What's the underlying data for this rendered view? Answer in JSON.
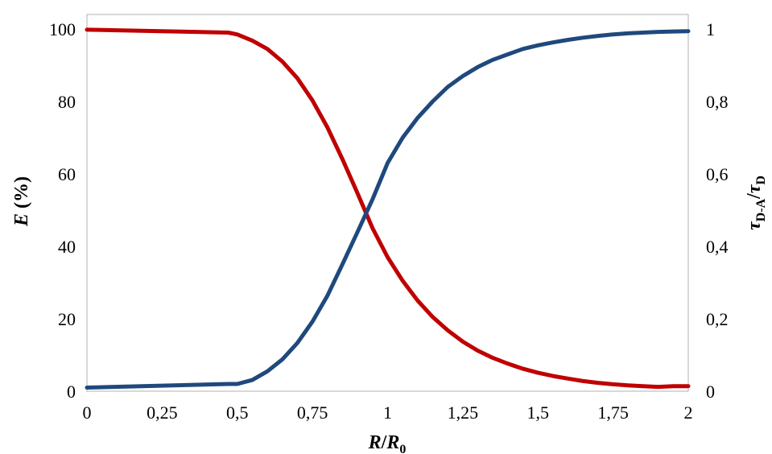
{
  "chart_data": {
    "type": "line",
    "xlabel": {
      "italic": "R",
      "slash": "/",
      "italic2": "R",
      "sub": "0"
    },
    "ylabel_left": {
      "italic": "E",
      "rest": " (%)"
    },
    "ylabel_right": {
      "tau1": "τ",
      "sub1": "D-A",
      "slash": "/",
      "tau2": "τ",
      "sub2": "D"
    },
    "xlim": [
      0,
      2
    ],
    "ylim_left": [
      0,
      100
    ],
    "ylim_right": [
      0,
      1
    ],
    "x_ticks": [
      "0",
      "0,25",
      "0,5",
      "0,75",
      "1",
      "1,25",
      "1,5",
      "1,75",
      "2"
    ],
    "y_left_ticks": [
      "0",
      "20",
      "40",
      "60",
      "80",
      "100"
    ],
    "y_right_ticks": [
      "0",
      "0,2",
      "0,4",
      "0,6",
      "0,8",
      "1"
    ],
    "grid": false,
    "legend": "none",
    "x": [
      0,
      0.47,
      0.5,
      0.55,
      0.6,
      0.65,
      0.7,
      0.75,
      0.8,
      0.85,
      0.9,
      0.95,
      1.0,
      1.05,
      1.1,
      1.15,
      1.2,
      1.25,
      1.3,
      1.35,
      1.4,
      1.45,
      1.5,
      1.55,
      1.6,
      1.65,
      1.7,
      1.75,
      1.8,
      1.85,
      1.9,
      1.95,
      2.0
    ],
    "series": [
      {
        "axis": "left",
        "color": "#c00000",
        "values": [
          99.8,
          99.0,
          98.5,
          96.8,
          94.5,
          91.0,
          86.4,
          80.3,
          72.8,
          64.0,
          54.6,
          45.0,
          37.0,
          30.5,
          25.0,
          20.5,
          16.8,
          13.7,
          11.2,
          9.2,
          7.6,
          6.2,
          5.1,
          4.2,
          3.5,
          2.8,
          2.3,
          1.9,
          1.6,
          1.4,
          1.2,
          1.4,
          1.4
        ]
      },
      {
        "axis": "right",
        "color": "#1f497d",
        "values": [
          0.01,
          0.02,
          0.02,
          0.031,
          0.055,
          0.088,
          0.133,
          0.192,
          0.264,
          0.351,
          0.44,
          0.53,
          0.63,
          0.7,
          0.755,
          0.8,
          0.84,
          0.87,
          0.895,
          0.915,
          0.93,
          0.945,
          0.955,
          0.963,
          0.97,
          0.976,
          0.981,
          0.985,
          0.988,
          0.99,
          0.992,
          0.993,
          0.994
        ]
      }
    ]
  }
}
